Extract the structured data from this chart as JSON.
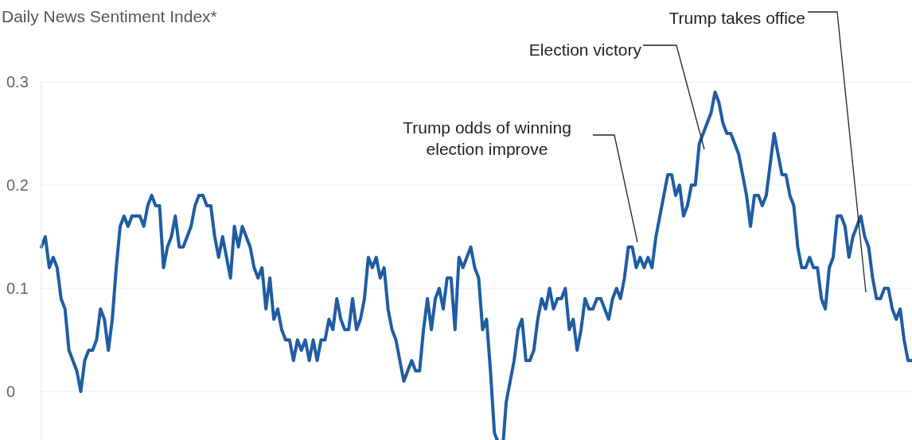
{
  "chart_data": {
    "type": "line",
    "title": "Daily News Sentiment Index*",
    "annotations": [
      "Trump takes office",
      "Election victory",
      "Trump odds of winning\nelection improve"
    ],
    "categories": [
      null,
      null,
      null,
      null,
      null,
      null,
      null,
      null,
      null,
      null,
      null,
      null,
      null,
      null,
      null,
      null,
      null,
      null,
      null,
      null,
      null,
      null,
      null,
      null,
      null,
      null,
      null,
      null,
      null,
      null,
      null,
      null,
      null,
      null,
      null,
      null,
      null,
      null,
      null,
      null,
      null,
      null,
      null,
      null,
      null,
      null,
      null,
      null,
      null,
      null,
      null,
      null,
      null,
      null,
      null,
      null,
      null,
      null,
      null,
      null,
      null,
      null,
      null,
      null,
      null,
      null,
      null,
      null,
      null,
      null,
      null,
      null,
      null,
      null,
      null,
      null,
      null,
      null,
      null,
      null,
      null,
      null,
      null,
      null,
      null,
      null,
      null,
      null,
      null,
      null,
      null,
      null,
      null,
      null,
      null,
      null,
      null,
      null,
      null,
      null,
      null,
      null,
      null,
      null,
      null,
      null,
      null,
      null,
      null,
      null,
      null,
      null,
      null,
      null,
      null,
      null,
      null,
      null,
      null,
      null,
      null,
      null,
      null,
      null,
      null,
      null,
      null,
      null,
      null,
      null,
      null,
      null,
      null,
      null,
      null,
      null,
      null,
      null,
      null,
      null,
      null,
      null,
      null,
      null,
      null,
      null,
      null,
      null,
      null,
      null,
      null,
      null,
      null,
      null,
      null,
      null,
      null,
      null,
      null,
      null,
      null,
      null,
      null,
      null,
      null,
      null,
      null,
      null,
      null,
      null,
      null,
      null,
      null,
      null,
      null,
      null,
      null,
      null,
      null,
      null,
      null,
      null,
      null,
      null,
      null,
      null,
      null,
      null,
      null,
      null,
      null,
      null,
      null,
      null,
      null,
      null,
      null,
      null,
      null,
      null,
      null,
      null,
      null,
      null,
      null,
      null,
      null,
      null,
      null,
      null,
      null,
      null,
      null,
      null,
      null,
      null,
      null,
      null,
      null,
      null,
      null,
      null
    ],
    "series": [
      {
        "color": "#1f5ca3",
        "values": [
          0.14,
          0.15,
          0.12,
          0.13,
          0.12,
          0.09,
          0.08,
          0.04,
          0.03,
          0.02,
          0.0,
          0.03,
          0.04,
          0.04,
          0.05,
          0.08,
          0.07,
          0.04,
          0.07,
          0.12,
          0.16,
          0.17,
          0.16,
          0.17,
          0.17,
          0.17,
          0.16,
          0.18,
          0.19,
          0.18,
          0.18,
          0.12,
          0.14,
          0.15,
          0.17,
          0.14,
          0.14,
          0.15,
          0.16,
          0.18,
          0.19,
          0.19,
          0.18,
          0.18,
          0.15,
          0.13,
          0.15,
          0.13,
          0.11,
          0.16,
          0.14,
          0.16,
          0.15,
          0.14,
          0.12,
          0.11,
          0.12,
          0.08,
          0.11,
          0.07,
          0.08,
          0.06,
          0.05,
          0.05,
          0.03,
          0.05,
          0.04,
          0.05,
          0.03,
          0.05,
          0.03,
          0.05,
          0.05,
          0.07,
          0.06,
          0.09,
          0.07,
          0.06,
          0.06,
          0.09,
          0.06,
          0.07,
          0.09,
          0.13,
          0.12,
          0.13,
          0.11,
          0.12,
          0.08,
          0.06,
          0.05,
          0.03,
          0.01,
          0.02,
          0.03,
          0.02,
          0.02,
          0.06,
          0.09,
          0.06,
          0.09,
          0.1,
          0.08,
          0.11,
          0.11,
          0.06,
          0.13,
          0.12,
          0.13,
          0.14,
          0.12,
          0.11,
          0.06,
          0.07,
          0.02,
          -0.04,
          -0.05,
          -0.06,
          -0.01,
          0.01,
          0.03,
          0.06,
          0.07,
          0.03,
          0.03,
          0.04,
          0.07,
          0.09,
          0.08,
          0.1,
          0.08,
          0.09,
          0.09,
          0.1,
          0.06,
          0.07,
          0.04,
          0.06,
          0.09,
          0.08,
          0.08,
          0.09,
          0.09,
          0.08,
          0.07,
          0.09,
          0.1,
          0.09,
          0.11,
          0.14,
          0.14,
          0.12,
          0.13,
          0.12,
          0.13,
          0.12,
          0.15,
          0.17,
          0.19,
          0.21,
          0.21,
          0.19,
          0.2,
          0.17,
          0.18,
          0.2,
          0.2,
          0.24,
          0.25,
          0.26,
          0.27,
          0.29,
          0.28,
          0.26,
          0.25,
          0.25,
          0.24,
          0.23,
          0.21,
          0.19,
          0.16,
          0.19,
          0.19,
          0.18,
          0.19,
          0.22,
          0.25,
          0.23,
          0.21,
          0.21,
          0.19,
          0.18,
          0.14,
          0.12,
          0.12,
          0.13,
          0.12,
          0.12,
          0.09,
          0.08,
          0.12,
          0.13,
          0.17,
          0.17,
          0.16,
          0.13,
          0.15,
          0.16,
          0.17,
          0.15,
          0.14,
          0.11,
          0.09,
          0.09,
          0.1,
          0.1,
          0.08,
          0.07,
          0.08,
          0.05,
          0.03,
          0.03
        ]
      }
    ],
    "ylim": [
      -0.07,
      0.3
    ],
    "yticks": [
      0,
      0.1,
      0.2,
      0.3
    ],
    "grid": "y",
    "tick_labels": "y",
    "marker": "none",
    "line_style": "solid"
  }
}
